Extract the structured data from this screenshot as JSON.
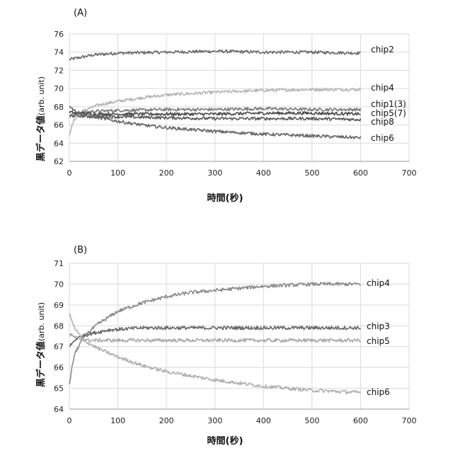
{
  "chart_data": [
    {
      "type": "line",
      "panel_label": "(A)",
      "xlabel": "時間(秒)",
      "ylabel_main": "黒データ値",
      "ylabel_unit": "(arb. unit)",
      "xlim": [
        0,
        700
      ],
      "ylim": [
        62,
        76
      ],
      "xticks": [
        0,
        100,
        200,
        300,
        400,
        500,
        600,
        700
      ],
      "yticks": [
        62,
        64,
        66,
        68,
        70,
        72,
        74,
        76
      ],
      "grid": true,
      "series": [
        {
          "name": "chip2",
          "color": "#6b6b6b",
          "x": [
            0,
            20,
            50,
            100,
            200,
            300,
            400,
            500,
            600
          ],
          "y": [
            73.2,
            73.4,
            73.7,
            73.9,
            74.0,
            74.1,
            74.0,
            74.0,
            73.9
          ]
        },
        {
          "name": "chip4",
          "color": "#b5b5b5",
          "x": [
            0,
            10,
            30,
            60,
            100,
            150,
            200,
            300,
            400,
            500,
            600
          ],
          "y": [
            65.0,
            66.6,
            67.6,
            68.2,
            68.6,
            69.0,
            69.3,
            69.6,
            69.8,
            69.9,
            69.9
          ]
        },
        {
          "name": "chip1(3)",
          "color": "#7a7a7a",
          "x": [
            0,
            20,
            50,
            100,
            200,
            300,
            400,
            500,
            600
          ],
          "y": [
            67.0,
            67.3,
            67.5,
            67.6,
            67.7,
            67.7,
            67.8,
            67.7,
            67.7
          ]
        },
        {
          "name": "chip5(7)",
          "color": "#4a4a4a",
          "x": [
            0,
            20,
            50,
            100,
            200,
            300,
            400,
            500,
            600
          ],
          "y": [
            67.4,
            67.3,
            67.2,
            67.2,
            67.2,
            67.2,
            67.3,
            67.3,
            67.2
          ]
        },
        {
          "name": "chip8",
          "color": "#5a5a5a",
          "x": [
            0,
            20,
            50,
            100,
            200,
            300,
            400,
            500,
            600
          ],
          "y": [
            67.0,
            67.0,
            66.9,
            66.9,
            66.8,
            66.7,
            66.7,
            66.7,
            66.6
          ]
        },
        {
          "name": "chip6",
          "color": "#666666",
          "x": [
            0,
            10,
            30,
            60,
            100,
            150,
            200,
            300,
            400,
            500,
            600
          ],
          "y": [
            68.2,
            67.6,
            67.1,
            66.8,
            66.4,
            66.0,
            65.7,
            65.3,
            65.0,
            64.8,
            64.6
          ]
        }
      ]
    },
    {
      "type": "line",
      "panel_label": "(B)",
      "xlabel": "時間(秒)",
      "ylabel_main": "黒データ値",
      "ylabel_unit": "(arb. unit)",
      "xlim": [
        0,
        700
      ],
      "ylim": [
        64,
        71
      ],
      "xticks": [
        0,
        100,
        200,
        300,
        400,
        500,
        600,
        700
      ],
      "yticks": [
        64,
        65,
        66,
        67,
        68,
        69,
        70,
        71
      ],
      "grid": true,
      "series": [
        {
          "name": "chip4",
          "color": "#8a8a8a",
          "x": [
            0,
            10,
            30,
            60,
            100,
            150,
            200,
            250,
            300,
            400,
            500,
            600
          ],
          "y": [
            65.2,
            66.6,
            67.5,
            68.1,
            68.7,
            69.1,
            69.4,
            69.6,
            69.7,
            69.9,
            70.0,
            70.0
          ]
        },
        {
          "name": "chip3",
          "color": "#6a6a6a",
          "x": [
            0,
            15,
            40,
            80,
            150,
            200,
            300,
            400,
            500,
            600
          ],
          "y": [
            67.0,
            67.4,
            67.6,
            67.8,
            67.9,
            67.9,
            67.9,
            67.9,
            67.9,
            67.9
          ]
        },
        {
          "name": "chip5",
          "color": "#a8a8a8",
          "x": [
            0,
            15,
            40,
            80,
            150,
            200,
            300,
            400,
            500,
            600
          ],
          "y": [
            67.6,
            67.4,
            67.3,
            67.3,
            67.3,
            67.3,
            67.3,
            67.3,
            67.3,
            67.3
          ]
        },
        {
          "name": "chip6",
          "color": "#b0b0b0",
          "x": [
            0,
            10,
            30,
            60,
            100,
            150,
            200,
            300,
            400,
            500,
            600
          ],
          "y": [
            68.6,
            67.9,
            67.3,
            66.9,
            66.5,
            66.1,
            65.8,
            65.4,
            65.1,
            64.9,
            64.8
          ]
        }
      ]
    }
  ]
}
